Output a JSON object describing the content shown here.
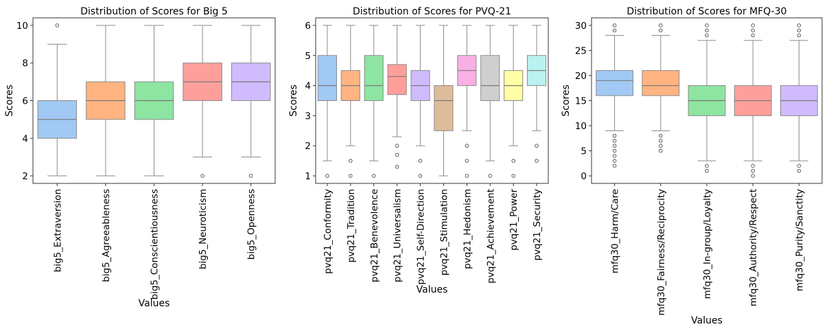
{
  "chart_data": [
    {
      "type": "box",
      "title": "Distribution of Scores for Big 5",
      "xlabel": "Values",
      "ylabel": "Scores",
      "ylim": [
        1.6,
        10.4
      ],
      "yticks": [
        2,
        4,
        6,
        8,
        10
      ],
      "categories": [
        "big5_Extraversion",
        "big5_Agreeableness",
        "big5_Conscientiousness",
        "big5_Neuroticism",
        "big5_Openness"
      ],
      "boxes": [
        {
          "whislo": 2,
          "q1": 4,
          "med": 5,
          "q3": 6,
          "whishi": 9,
          "fliers": [
            10
          ],
          "color": "#a1c9f4"
        },
        {
          "whislo": 2,
          "q1": 5,
          "med": 6,
          "q3": 7,
          "whishi": 10,
          "fliers": [],
          "color": "#ffb482"
        },
        {
          "whislo": 2,
          "q1": 5,
          "med": 6,
          "q3": 7,
          "whishi": 10,
          "fliers": [],
          "color": "#8de5a1"
        },
        {
          "whislo": 3,
          "q1": 6,
          "med": 7,
          "q3": 8,
          "whishi": 10,
          "fliers": [
            2
          ],
          "color": "#ff9f9b"
        },
        {
          "whislo": 3,
          "q1": 6,
          "med": 7,
          "q3": 8,
          "whishi": 10,
          "fliers": [
            2
          ],
          "color": "#d0bbff"
        }
      ]
    },
    {
      "type": "box",
      "title": "Distribution of Scores for PVQ-21",
      "xlabel": "Values",
      "ylabel": "Scores",
      "ylim": [
        0.75,
        6.25
      ],
      "yticks": [
        1,
        2,
        3,
        4,
        5,
        6
      ],
      "categories": [
        "pvq21_Conformity",
        "pvq21_Tradition",
        "pvq21_Benevolence",
        "pvq21_Universalism",
        "pvq21_Self-Direction",
        "pvq21_Stimulation",
        "pvq21_Hedonism",
        "pvq21_Achievement",
        "pvq21_Power",
        "pvq21_Security"
      ],
      "boxes": [
        {
          "whislo": 1.5,
          "q1": 3.5,
          "med": 4,
          "q3": 5,
          "whishi": 6,
          "fliers": [
            1
          ],
          "color": "#a1c9f4"
        },
        {
          "whislo": 2,
          "q1": 3.5,
          "med": 4,
          "q3": 4.5,
          "whishi": 6,
          "fliers": [
            1.5,
            1
          ],
          "color": "#ffb482"
        },
        {
          "whislo": 1.5,
          "q1": 3.5,
          "med": 4,
          "q3": 5,
          "whishi": 6,
          "fliers": [
            1
          ],
          "color": "#8de5a1"
        },
        {
          "whislo": 2.3,
          "q1": 3.7,
          "med": 4.3,
          "q3": 4.7,
          "whishi": 6,
          "fliers": [
            2,
            1.7,
            1.3
          ],
          "color": "#ff9f9b"
        },
        {
          "whislo": 2,
          "q1": 3.5,
          "med": 4,
          "q3": 4.5,
          "whishi": 6,
          "fliers": [
            1.5,
            1
          ],
          "color": "#d0bbff"
        },
        {
          "whislo": 1,
          "q1": 2.5,
          "med": 3.5,
          "q3": 4,
          "whishi": 6,
          "fliers": [],
          "color": "#debb9b"
        },
        {
          "whislo": 2.5,
          "q1": 4,
          "med": 4.5,
          "q3": 5,
          "whishi": 6,
          "fliers": [
            2,
            1.5,
            1
          ],
          "color": "#fab0e4"
        },
        {
          "whislo": 1.5,
          "q1": 3.5,
          "med": 4,
          "q3": 5,
          "whishi": 6,
          "fliers": [
            1
          ],
          "color": "#cfcfcf"
        },
        {
          "whislo": 2,
          "q1": 3.5,
          "med": 4,
          "q3": 4.5,
          "whishi": 6,
          "fliers": [
            1.5,
            1
          ],
          "color": "#fffea3"
        },
        {
          "whislo": 2.5,
          "q1": 4,
          "med": 4.5,
          "q3": 5,
          "whishi": 6,
          "fliers": [
            2,
            1.5
          ],
          "color": "#b9f2f0"
        }
      ]
    },
    {
      "type": "box",
      "title": "Distribution of Scores for MFQ-30",
      "xlabel": "Values",
      "ylabel": "Scores",
      "ylim": [
        -1.5,
        31.5
      ],
      "yticks": [
        0,
        5,
        10,
        15,
        20,
        25,
        30
      ],
      "categories": [
        "mfq30_Harm/Care",
        "mfq30_Fairness/Reciprocity",
        "mfq30_In-group/Loyalty",
        "mfq30_Authority/Respect",
        "mfq30_Purity/Sanctity"
      ],
      "boxes": [
        {
          "whislo": 9,
          "q1": 16,
          "med": 19,
          "q3": 21,
          "whishi": 28,
          "fliers": [
            30,
            29,
            8,
            7,
            6,
            5,
            4,
            3,
            2
          ],
          "color": "#a1c9f4"
        },
        {
          "whislo": 9,
          "q1": 16,
          "med": 18,
          "q3": 21,
          "whishi": 28,
          "fliers": [
            30,
            29,
            8,
            7,
            6,
            5
          ],
          "color": "#ffb482"
        },
        {
          "whislo": 3,
          "q1": 12,
          "med": 15,
          "q3": 18,
          "whishi": 27,
          "fliers": [
            30,
            29,
            28,
            2,
            1
          ],
          "color": "#8de5a1"
        },
        {
          "whislo": 3,
          "q1": 12,
          "med": 15,
          "q3": 18,
          "whishi": 27,
          "fliers": [
            30,
            29,
            28,
            2,
            1,
            0
          ],
          "color": "#ff9f9b"
        },
        {
          "whislo": 3,
          "q1": 12,
          "med": 15,
          "q3": 18,
          "whishi": 27,
          "fliers": [
            30,
            29,
            28,
            2,
            1
          ],
          "color": "#d0bbff"
        }
      ]
    }
  ]
}
